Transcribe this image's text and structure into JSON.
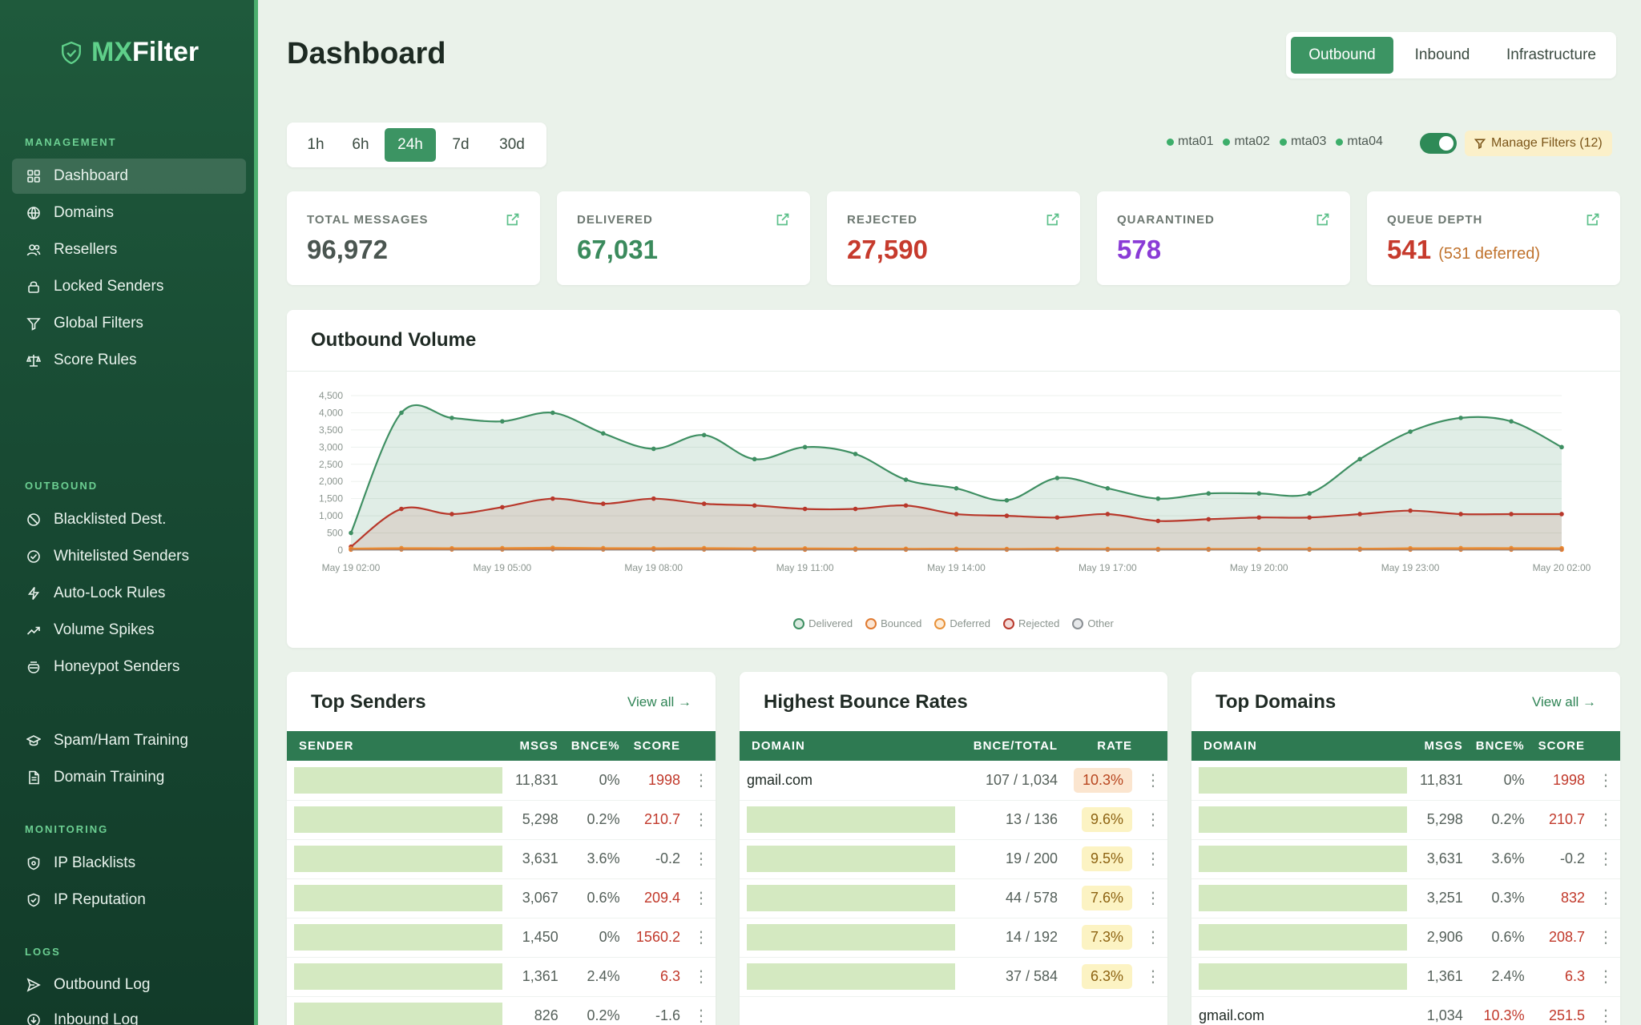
{
  "brand": {
    "prefix": "MX",
    "suffix": "Filter"
  },
  "sidebar": {
    "sections": {
      "management": "MANAGEMENT",
      "outbound": "OUTBOUND",
      "monitoring": "MONITORING",
      "logs": "LOGS"
    },
    "items": [
      {
        "label": "Dashboard",
        "icon": "grid-icon",
        "active": true
      },
      {
        "label": "Domains",
        "icon": "globe-icon"
      },
      {
        "label": "Resellers",
        "icon": "users-icon"
      },
      {
        "label": "Locked Senders",
        "icon": "lock-icon"
      },
      {
        "label": "Global Filters",
        "icon": "filter-icon"
      },
      {
        "label": "Score Rules",
        "icon": "scale-icon"
      },
      {
        "label": "Blacklisted Dest.",
        "icon": "ban-icon"
      },
      {
        "label": "Whitelisted Senders",
        "icon": "check-circle-icon"
      },
      {
        "label": "Auto-Lock Rules",
        "icon": "bolt-icon"
      },
      {
        "label": "Volume Spikes",
        "icon": "trend-up-icon"
      },
      {
        "label": "Honeypot Senders",
        "icon": "honeypot-icon"
      },
      {
        "label": "Spam/Ham Training",
        "icon": "graduation-cap-icon"
      },
      {
        "label": "Domain Training",
        "icon": "document-icon"
      },
      {
        "label": "IP Blacklists",
        "icon": "shield-icon"
      },
      {
        "label": "IP Reputation",
        "icon": "shield-check-icon"
      },
      {
        "label": "Outbound Log",
        "icon": "send-icon"
      },
      {
        "label": "Inbound Log",
        "icon": "inbox-icon"
      }
    ]
  },
  "header": {
    "title": "Dashboard",
    "views": [
      "Outbound",
      "Inbound",
      "Infrastructure"
    ],
    "active_view": "Outbound"
  },
  "time_ranges": [
    "1h",
    "6h",
    "24h",
    "7d",
    "30d"
  ],
  "active_range": "24h",
  "servers": [
    "mta01",
    "mta02",
    "mta03",
    "mta04"
  ],
  "manage_filters": "Manage Filters (12)",
  "stats": [
    {
      "label": "TOTAL MESSAGES",
      "value": "96,972",
      "color": "#4a5550"
    },
    {
      "label": "DELIVERED",
      "value": "67,031",
      "color": "#3a8a5c"
    },
    {
      "label": "REJECTED",
      "value": "27,590",
      "color": "#c63a2c"
    },
    {
      "label": "QUARANTINED",
      "value": "578",
      "color": "#8a3bd6"
    },
    {
      "label": "QUEUE DEPTH",
      "value": "541",
      "sub": "(531 deferred)",
      "color": "#c63a2c"
    }
  ],
  "chart_panel_title": "Outbound Volume",
  "chart_data": {
    "type": "area",
    "title": "Outbound Volume",
    "x": [
      "May 19 02:00",
      "May 19 03:00",
      "May 19 04:00",
      "May 19 05:00",
      "May 19 06:00",
      "May 19 07:00",
      "May 19 08:00",
      "May 19 09:00",
      "May 19 10:00",
      "May 19 11:00",
      "May 19 12:00",
      "May 19 13:00",
      "May 19 14:00",
      "May 19 15:00",
      "May 19 16:00",
      "May 19 17:00",
      "May 19 18:00",
      "May 19 19:00",
      "May 19 20:00",
      "May 19 21:00",
      "May 19 22:00",
      "May 19 23:00",
      "May 20 00:00",
      "May 20 01:00",
      "May 20 02:00"
    ],
    "x_tick_labels": [
      "May 19 02:00",
      "May 19 05:00",
      "May 19 08:00",
      "May 19 11:00",
      "May 19 14:00",
      "May 19 17:00",
      "May 19 20:00",
      "May 19 23:00",
      "May 20 02:00"
    ],
    "y_ticks": [
      "0",
      "500",
      "1,000",
      "1,500",
      "2,000",
      "2,500",
      "3,000",
      "3,500",
      "4,000",
      "4,500"
    ],
    "ylim": [
      0,
      4500
    ],
    "grid": true,
    "legend_position": "bottom",
    "series": [
      {
        "name": "Delivered",
        "color": "#3e8f62",
        "values": [
          500,
          4000,
          3850,
          3750,
          4000,
          3400,
          2950,
          3350,
          2650,
          3000,
          2800,
          2050,
          1800,
          1450,
          2100,
          1800,
          1500,
          1650,
          1650,
          1650,
          2650,
          3450,
          3850,
          3750,
          3000
        ]
      },
      {
        "name": "Bounced",
        "color": "#e07a30",
        "values": [
          15,
          20,
          20,
          20,
          25,
          20,
          20,
          20,
          15,
          15,
          15,
          15,
          15,
          15,
          15,
          15,
          15,
          15,
          15,
          15,
          15,
          15,
          15,
          15,
          15
        ]
      },
      {
        "name": "Deferred",
        "color": "#e8923a",
        "values": [
          45,
          60,
          55,
          60,
          70,
          60,
          55,
          60,
          50,
          50,
          45,
          40,
          40,
          35,
          40,
          35,
          35,
          35,
          35,
          35,
          40,
          55,
          60,
          60,
          55
        ]
      },
      {
        "name": "Rejected",
        "color": "#b8382b",
        "values": [
          100,
          1200,
          1050,
          1250,
          1500,
          1350,
          1500,
          1350,
          1300,
          1200,
          1200,
          1300,
          1050,
          1000,
          950,
          1050,
          850,
          900,
          950,
          950,
          1050,
          1150,
          1050,
          1050,
          1050
        ]
      },
      {
        "name": "Other",
        "color": "#8a8f93",
        "values": [
          0,
          0,
          0,
          0,
          0,
          0,
          0,
          0,
          0,
          0,
          0,
          0,
          0,
          0,
          0,
          0,
          0,
          0,
          0,
          0,
          0,
          0,
          0,
          0,
          0
        ]
      }
    ]
  },
  "top_senders": {
    "title": "Top Senders",
    "view_all": "View all →",
    "columns": [
      "SENDER",
      "MSGS",
      "BNCE%",
      "SCORE"
    ],
    "rows": [
      {
        "msgs": "11,831",
        "bnce": "0%",
        "score": "1998"
      },
      {
        "msgs": "5,298",
        "bnce": "0.2%",
        "score": "210.7"
      },
      {
        "msgs": "3,631",
        "bnce": "3.6%",
        "score": "-0.2"
      },
      {
        "msgs": "3,067",
        "bnce": "0.6%",
        "score": "209.4"
      },
      {
        "msgs": "1,450",
        "bnce": "0%",
        "score": "1560.2"
      },
      {
        "msgs": "1,361",
        "bnce": "2.4%",
        "score": "6.3"
      },
      {
        "msgs": "826",
        "bnce": "0.2%",
        "score": "-1.6"
      }
    ]
  },
  "bounce_rates": {
    "title": "Highest Bounce Rates",
    "columns": [
      "DOMAIN",
      "BNCE/TOTAL",
      "RATE"
    ],
    "rows": [
      {
        "domain": "gmail.com",
        "ratio": "107 / 1,034",
        "rate": "10.3%"
      },
      {
        "domain": "",
        "ratio": "13 / 136",
        "rate": "9.6%"
      },
      {
        "domain": "",
        "ratio": "19 / 200",
        "rate": "9.5%"
      },
      {
        "domain": "",
        "ratio": "44 / 578",
        "rate": "7.6%"
      },
      {
        "domain": "",
        "ratio": "14 / 192",
        "rate": "7.3%"
      },
      {
        "domain": "",
        "ratio": "37 / 584",
        "rate": "6.3%"
      }
    ]
  },
  "top_domains": {
    "title": "Top Domains",
    "view_all": "View all →",
    "columns": [
      "DOMAIN",
      "MSGS",
      "BNCE%",
      "SCORE"
    ],
    "rows": [
      {
        "domain": "",
        "msgs": "11,831",
        "bnce": "0%",
        "score": "1998"
      },
      {
        "domain": "",
        "msgs": "5,298",
        "bnce": "0.2%",
        "score": "210.7"
      },
      {
        "domain": "",
        "msgs": "3,631",
        "bnce": "3.6%",
        "score": "-0.2"
      },
      {
        "domain": "",
        "msgs": "3,251",
        "bnce": "0.3%",
        "score": "832"
      },
      {
        "domain": "",
        "msgs": "2,906",
        "bnce": "0.6%",
        "score": "208.7"
      },
      {
        "domain": "",
        "msgs": "1,361",
        "bnce": "2.4%",
        "score": "6.3"
      },
      {
        "domain": "gmail.com",
        "msgs": "1,034",
        "bnce": "10.3%",
        "score": "251.5"
      }
    ]
  }
}
